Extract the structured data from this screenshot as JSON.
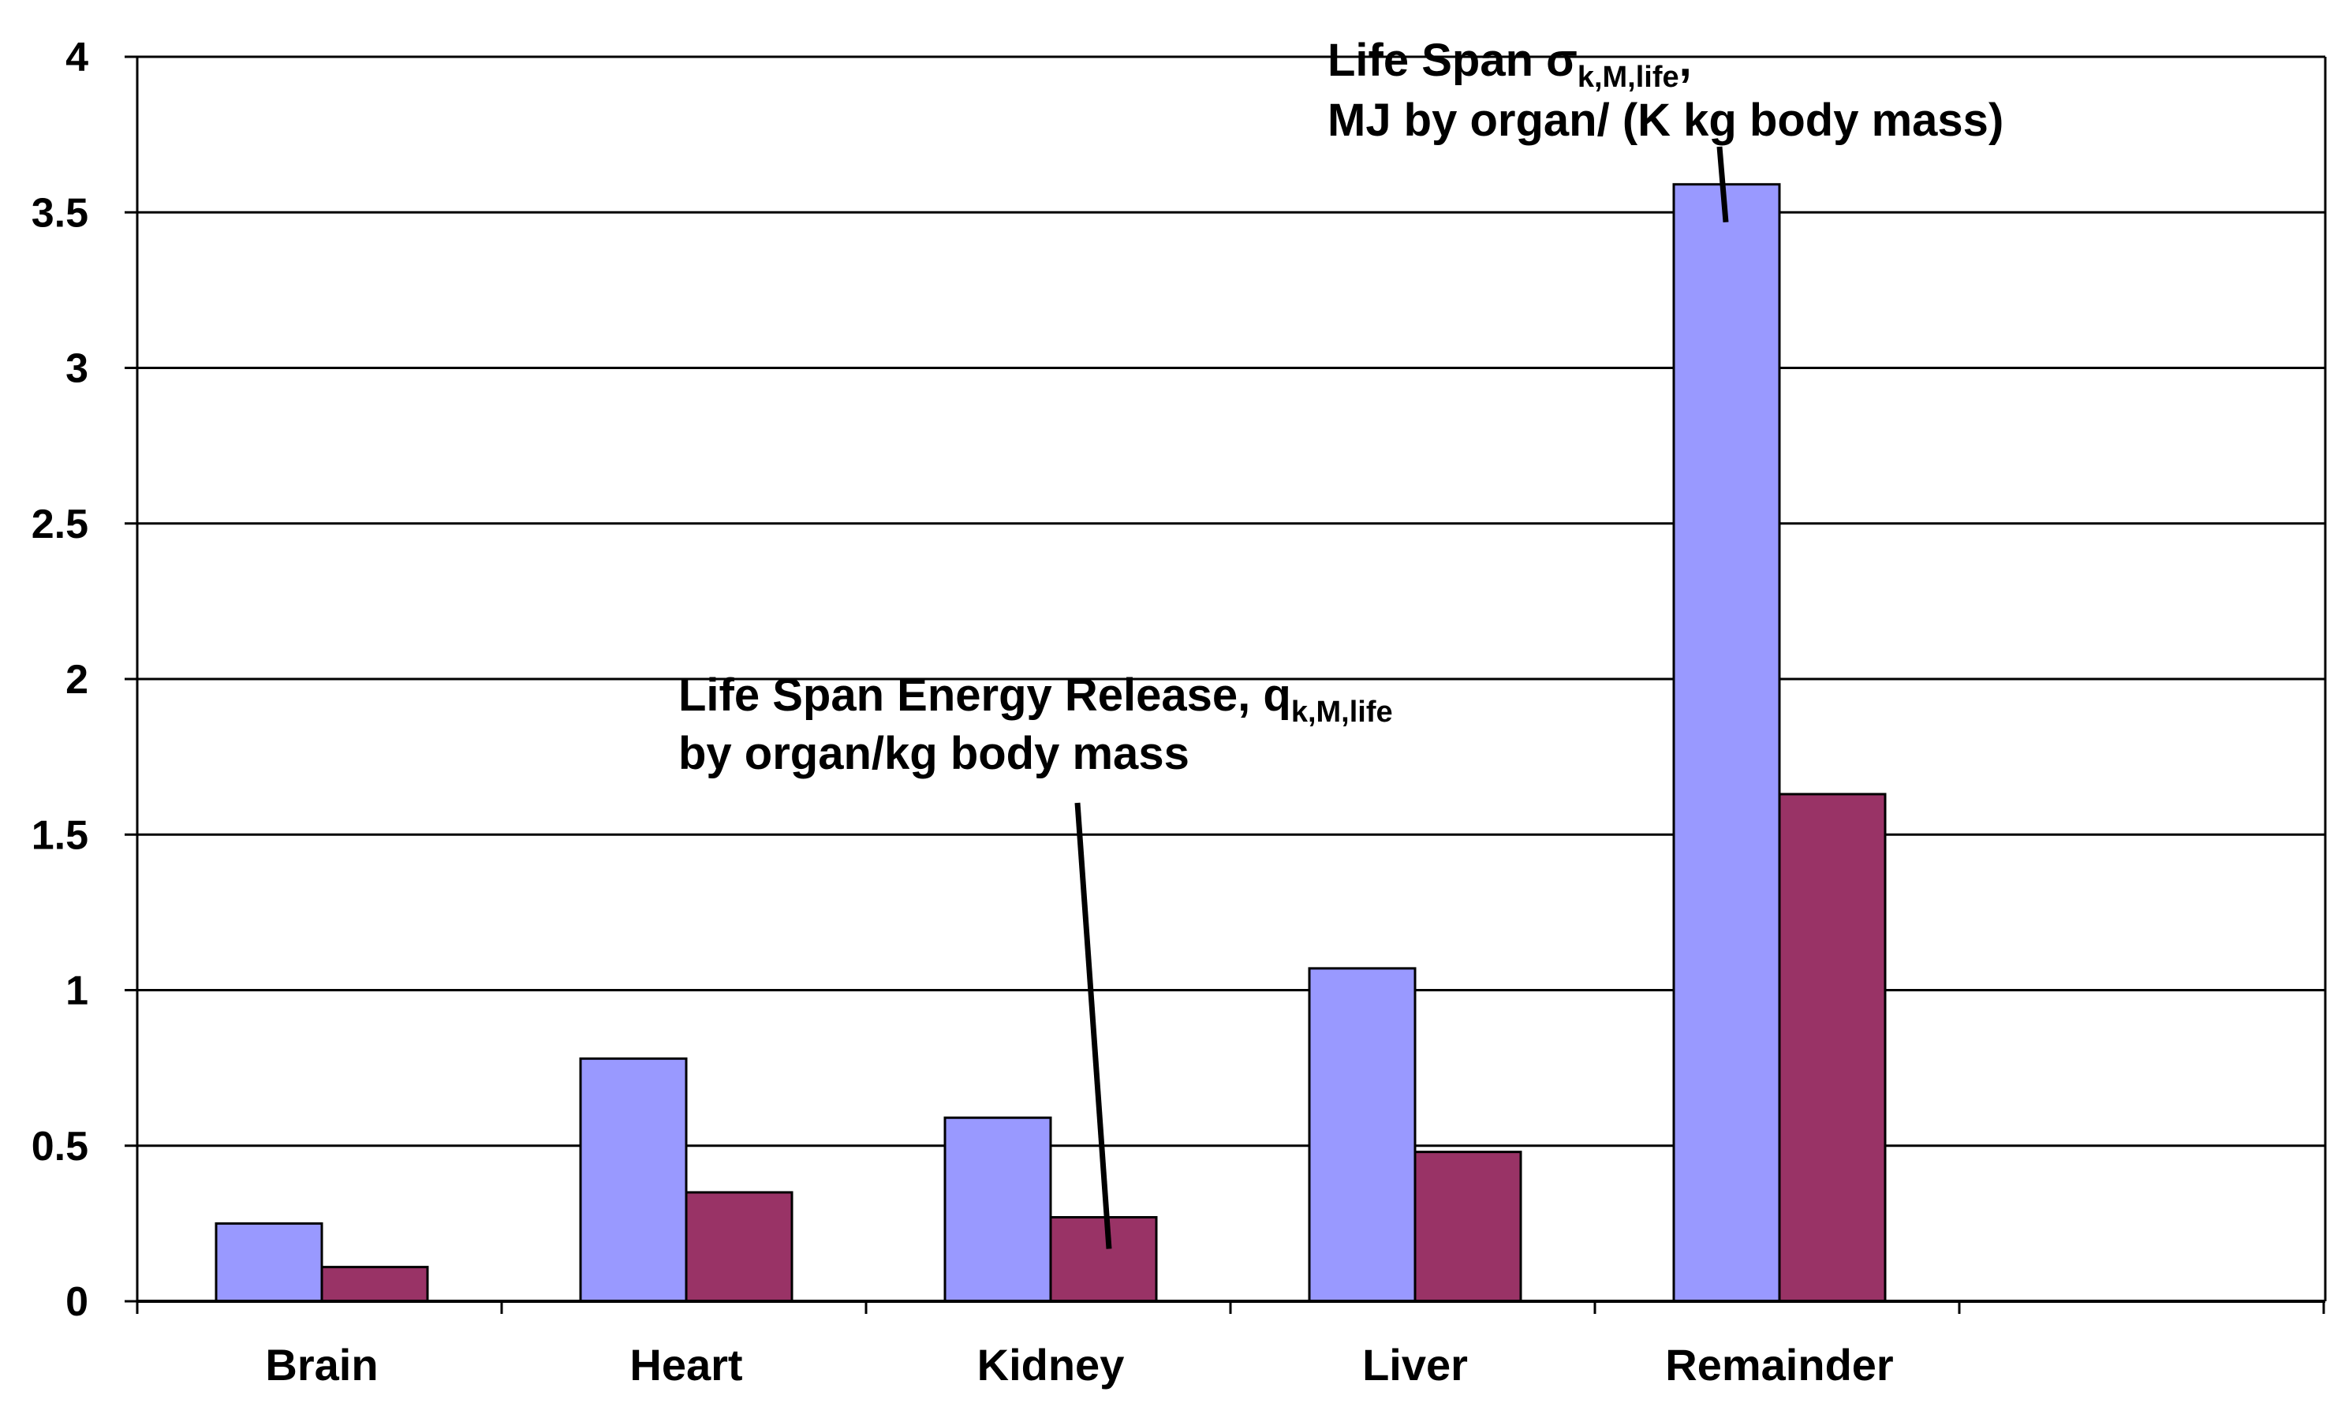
{
  "chart_data": {
    "type": "bar",
    "title": "",
    "xlabel": "",
    "ylabel": "",
    "ylim": [
      0,
      4
    ],
    "yticks": [
      "0",
      "0.5",
      "1",
      "1.5",
      "2",
      "2.5",
      "3",
      "3.5",
      "4"
    ],
    "grid": true,
    "legend": "none",
    "categories": [
      "Brain",
      "Heart",
      "Kidney",
      "Liver",
      "Remainder"
    ],
    "series": [
      {
        "name": "Life Span σk,M,life, MJ by organ/ (K kg body mass)",
        "color": "#9999ff",
        "values": [
          0.25,
          0.78,
          0.59,
          1.07,
          3.59
        ]
      },
      {
        "name": "Life Span Energy Release, qk,M,life by organ/kg body mass",
        "color": "#993366",
        "values": [
          0.11,
          0.35,
          0.27,
          0.48,
          1.63
        ]
      }
    ],
    "annotations": [
      {
        "line1_main": "Life  Span  σ",
        "line1_sub": "k,M,life",
        "line1_tail": ",",
        "line2": "MJ by  organ/ (K kg body mass)",
        "series": 0,
        "category": "Remainder"
      },
      {
        "line1_main": "Life  Span  Energy  Release, q",
        "line1_sub": "k,M,life",
        "line2": "by  organ/kg body mass",
        "series": 1,
        "category": "Kidney"
      }
    ]
  }
}
